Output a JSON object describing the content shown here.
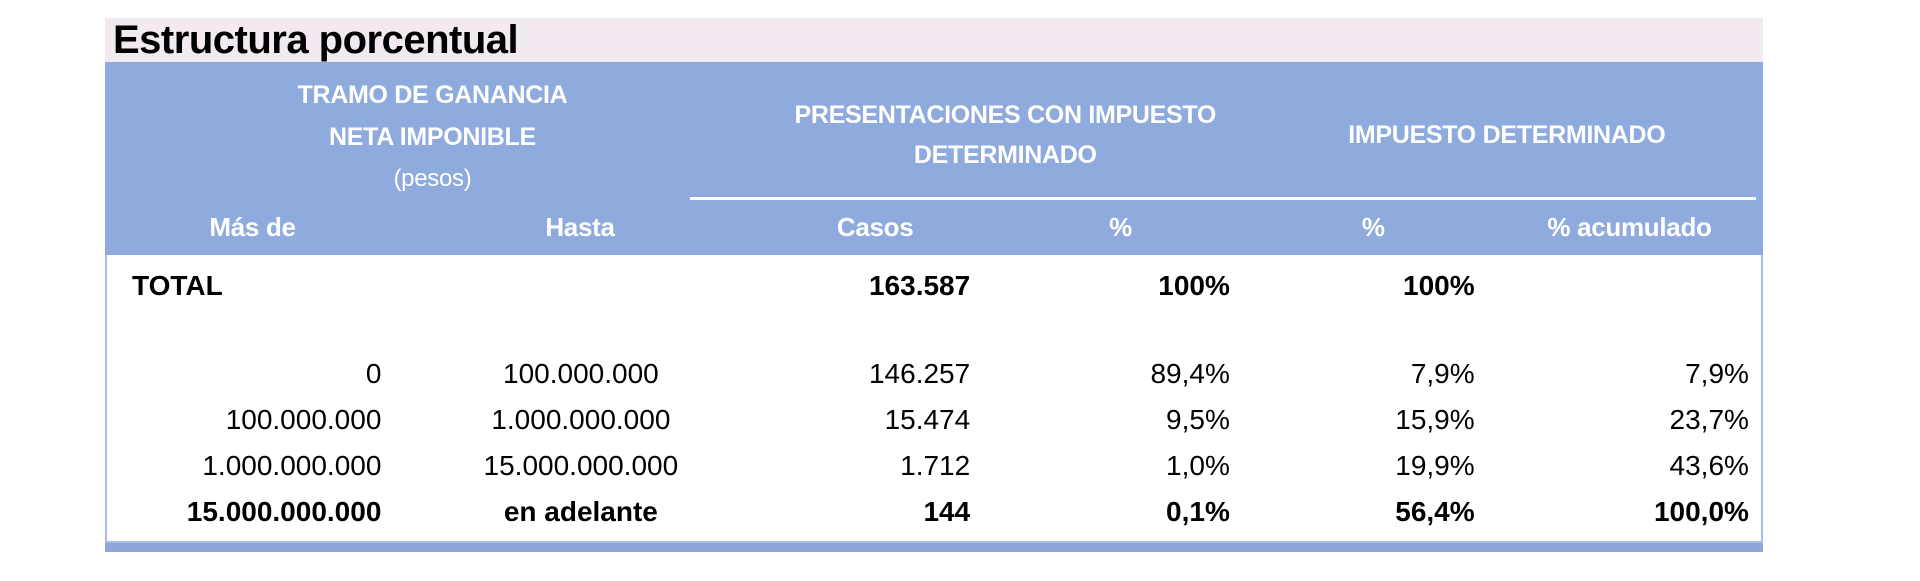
{
  "chart_data": {
    "type": "table",
    "title": "Estructura porcentual",
    "column_groups": {
      "tramo": {
        "line1": "TRAMO DE GANANCIA",
        "line2": "NETA IMPONIBLE",
        "line3": "(pesos)"
      },
      "presentaciones": {
        "line1": "PRESENTACIONES CON IMPUESTO",
        "line2": "DETERMINADO"
      },
      "impuesto": {
        "line1": "IMPUESTO DETERMINADO"
      }
    },
    "columns": [
      "Más de",
      "Hasta",
      "Casos",
      "%",
      "%",
      "% acumulado"
    ],
    "total_row": [
      "TOTAL",
      "",
      "163.587",
      "100%",
      "100%",
      ""
    ],
    "rows": [
      [
        "0",
        "100.000.000",
        "146.257",
        "89,4%",
        "7,9%",
        "7,9%"
      ],
      [
        "100.000.000",
        "1.000.000.000",
        "15.474",
        "9,5%",
        "15,9%",
        "23,7%"
      ],
      [
        "1.000.000.000",
        "15.000.000.000",
        "1.712",
        "1,0%",
        "19,9%",
        "43,6%"
      ],
      [
        "15.000.000.000",
        "en adelante",
        "144",
        "0,1%",
        "56,4%",
        "100,0%"
      ]
    ]
  },
  "colors": {
    "header_bg": "#8faadc",
    "title_bg": "#f3e9f0",
    "body_border": "#aabce8",
    "bottom_bar": "#8fa6d8",
    "header_text": "#ffffff",
    "body_text": "#000000"
  }
}
